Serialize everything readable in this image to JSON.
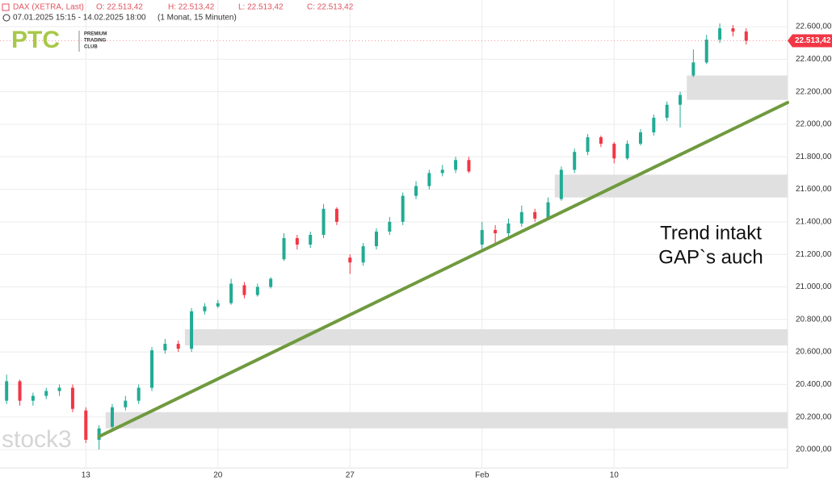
{
  "chart_data": {
    "type": "candlestick",
    "instrument": "DAX (XETRA, Last)",
    "ohlc": [
      "O: 22.513,42",
      "H: 22.513,42",
      "L: 22.513,42",
      "C: 22.513,42"
    ],
    "range": "07.01.2025 15:15 - 14.02.2025 18:00",
    "interval": "(1 Monat, 15 Minuten)",
    "logo": {
      "mark": "PTC",
      "lines": [
        "PREMIUM",
        "TRADING",
        "CLUB"
      ]
    },
    "watermark": "stock3",
    "annotation": [
      "Trend intakt",
      "GAP`s auch"
    ],
    "categories": [
      null,
      null,
      null,
      null,
      null,
      null,
      "13",
      null,
      null,
      null,
      null,
      null,
      null,
      null,
      null,
      null,
      "20",
      null,
      null,
      null,
      null,
      null,
      null,
      null,
      null,
      null,
      "27",
      null,
      null,
      null,
      null,
      null,
      null,
      null,
      null,
      null,
      "Feb",
      null,
      null,
      null,
      null,
      null,
      null,
      null,
      null,
      null,
      "10",
      null,
      null,
      null,
      null,
      null,
      null,
      null,
      null,
      null,
      null
    ],
    "open": [
      20300,
      20420,
      20300,
      20330,
      20360,
      20380,
      20240,
      20060,
      20140,
      20260,
      20300,
      20380,
      20610,
      20650,
      20620,
      20850,
      20880,
      20900,
      21010,
      20950,
      21000,
      21170,
      21300,
      21260,
      21320,
      21480,
      21180,
      21150,
      21250,
      21340,
      21400,
      21560,
      21620,
      21700,
      21720,
      21780,
      21260,
      21350,
      21330,
      21390,
      21460,
      21420,
      21540,
      21720,
      21830,
      21920,
      21880,
      21790,
      21880,
      21950,
      22040,
      22120,
      22300,
      22380,
      22520,
      22590,
      22570
    ],
    "high": [
      20460,
      20430,
      20350,
      20380,
      20400,
      20400,
      20260,
      20150,
      20280,
      20330,
      20400,
      20630,
      20680,
      20670,
      20870,
      20900,
      20920,
      21050,
      21030,
      21020,
      21060,
      21330,
      21320,
      21340,
      21510,
      21490,
      21200,
      21270,
      21360,
      21430,
      21580,
      21650,
      21720,
      21750,
      21800,
      21800,
      21400,
      21380,
      21420,
      21500,
      21480,
      21550,
      21740,
      21850,
      21940,
      21930,
      21890,
      21900,
      21970,
      22060,
      22140,
      22200,
      22460,
      22550,
      22620,
      22610,
      22590
    ],
    "low": [
      20280,
      20270,
      20270,
      20310,
      20330,
      20230,
      20040,
      20000,
      20120,
      20240,
      20280,
      20360,
      20590,
      20600,
      20600,
      20830,
      20870,
      20890,
      20930,
      20940,
      20990,
      21160,
      21230,
      21240,
      21300,
      21380,
      21080,
      21130,
      21230,
      21320,
      21380,
      21540,
      21600,
      21680,
      21700,
      21700,
      21230,
      21260,
      21300,
      21370,
      21400,
      21410,
      21530,
      21700,
      21810,
      21860,
      21760,
      21780,
      21870,
      21930,
      22020,
      21980,
      22290,
      22370,
      22500,
      22540,
      22490
    ],
    "close": [
      20420,
      20300,
      20330,
      20360,
      20380,
      20250,
      20060,
      20130,
      20260,
      20300,
      20380,
      20610,
      20650,
      20620,
      20850,
      20880,
      20900,
      21020,
      20950,
      21000,
      21050,
      21300,
      21260,
      21320,
      21480,
      21400,
      21150,
      21250,
      21340,
      21400,
      21560,
      21620,
      21700,
      21720,
      21780,
      21710,
      21350,
      21330,
      21390,
      21460,
      21420,
      21520,
      21720,
      21830,
      21920,
      21880,
      21790,
      21880,
      21950,
      22040,
      22120,
      22180,
      22380,
      22520,
      22590,
      22570,
      22513.42
    ],
    "up_color": "#22ab94",
    "down_color": "#f23645",
    "zones": [
      {
        "from": 22150,
        "to": 22300,
        "start": 52
      },
      {
        "from": 21550,
        "to": 21690,
        "start": 42
      },
      {
        "from": 20640,
        "to": 20740,
        "start": 14
      },
      {
        "from": 20130,
        "to": 20230,
        "start": 8
      }
    ],
    "zone_color": "#e0e0e0",
    "trendline": {
      "color": "#6f9a3e",
      "points": [
        [
          7,
          20080
        ],
        [
          56,
          22010
        ]
      ]
    },
    "last_price": {
      "value": 22513.42,
      "label": "22.513,42"
    },
    "ylim": [
      19886,
      22764
    ],
    "yticks": [
      {
        "value": 20000,
        "label": "20.000,00"
      },
      {
        "value": 20200,
        "label": "20.200,00"
      },
      {
        "value": 20400,
        "label": "20.400,00"
      },
      {
        "value": 20600,
        "label": "20.600,00"
      },
      {
        "value": 20800,
        "label": "20.800,00"
      },
      {
        "value": 21000,
        "label": "21.000,00"
      },
      {
        "value": 21200,
        "label": "21.200,00"
      },
      {
        "value": 21400,
        "label": "21.400,00"
      },
      {
        "value": 21600,
        "label": "21.600,00"
      },
      {
        "value": 21800,
        "label": "21.800,00"
      },
      {
        "value": 22000,
        "label": "22.000,00"
      },
      {
        "value": 22200,
        "label": "22.200,00"
      },
      {
        "value": 22400,
        "label": "22.400,00"
      },
      {
        "value": 22600,
        "label": "22.600,00"
      }
    ],
    "grid": true
  }
}
